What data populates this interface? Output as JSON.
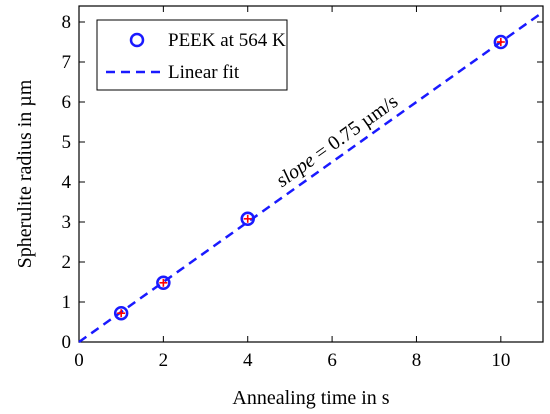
{
  "chart_data": {
    "type": "scatter",
    "xlabel": "Annealing time in s",
    "ylabel": "Spherulite radius in µm",
    "xlim": [
      0,
      11
    ],
    "ylim": [
      0,
      8.4
    ],
    "x_ticks": [
      0,
      2,
      4,
      6,
      8,
      10
    ],
    "y_ticks": [
      0,
      1,
      2,
      3,
      4,
      5,
      6,
      7,
      8
    ],
    "grid": false,
    "legend_position": "top-left",
    "series": [
      {
        "name": "PEEK at 564 K",
        "kind": "scatter",
        "marker": "open-circle-with-red-plus",
        "color": "#1a1aff",
        "error_color": "#ff0000",
        "x": [
          1,
          2,
          4,
          10
        ],
        "y": [
          0.72,
          1.48,
          3.08,
          7.5
        ]
      },
      {
        "name": "Linear fit",
        "kind": "line",
        "style": "dashed",
        "color": "#1a1aff",
        "slope": 0.75,
        "intercept": 0,
        "x": [
          0,
          11
        ],
        "y": [
          0,
          8.25
        ]
      }
    ],
    "annotation": {
      "italic_part": "slope",
      "rest": " = 0.75 µm/s",
      "at_x": 6.2,
      "at_y": 4.9
    }
  }
}
